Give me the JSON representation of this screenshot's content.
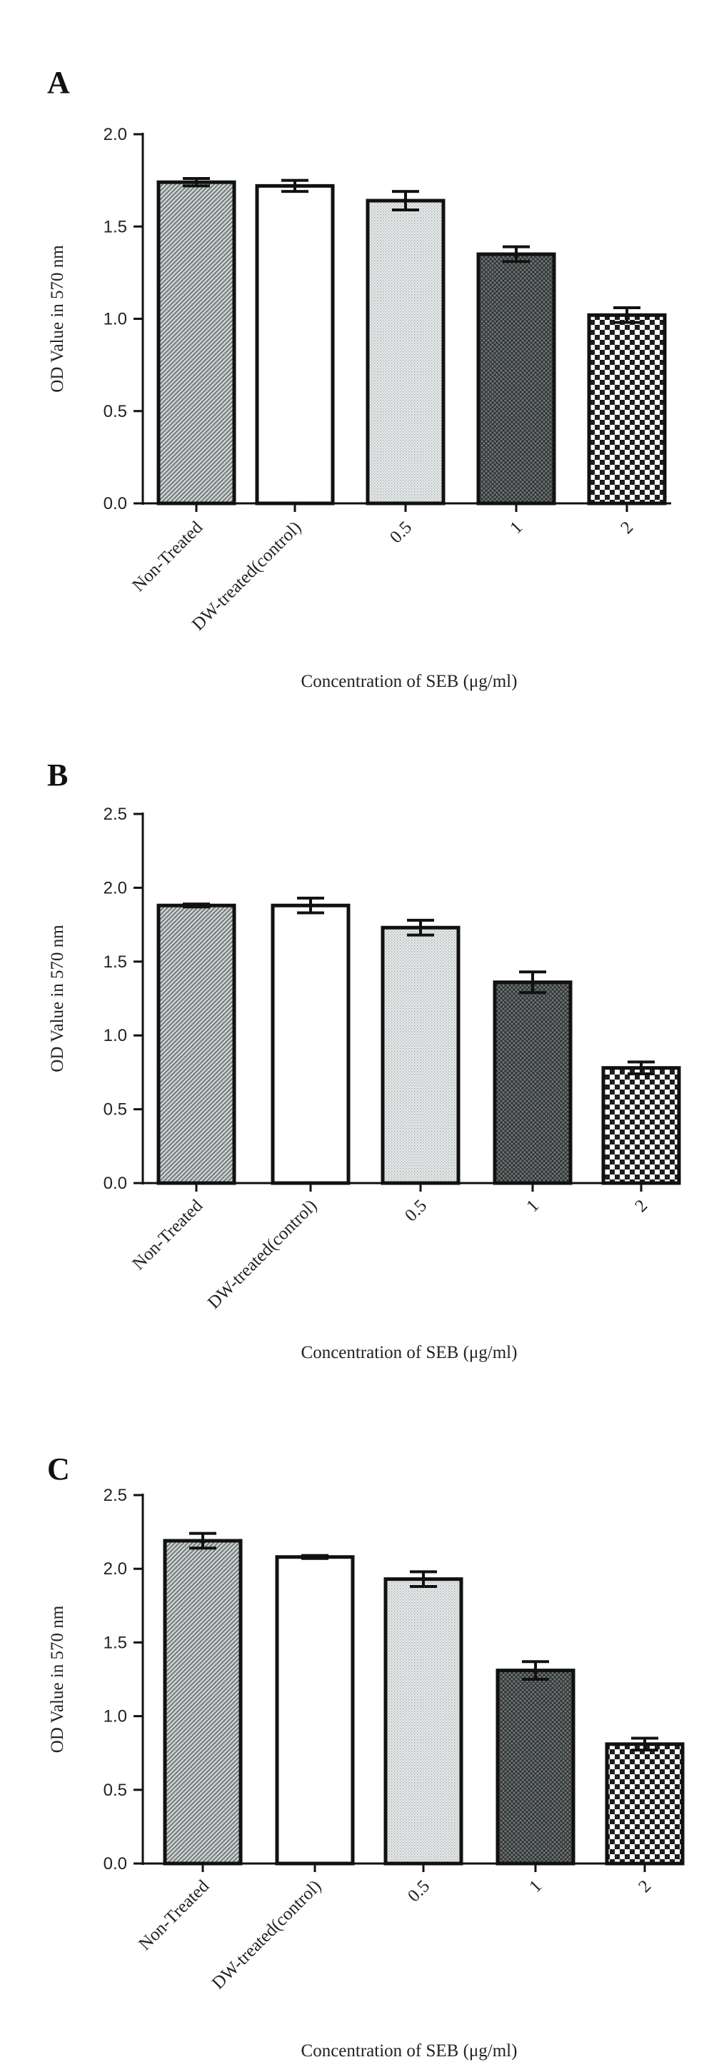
{
  "chart_data": [
    {
      "type": "bar",
      "panel_label": "A",
      "categories": [
        "Non-Treated",
        "DW-treated(control)",
        "0.5",
        "1",
        "2"
      ],
      "values": [
        1.74,
        1.72,
        1.64,
        1.35,
        1.02
      ],
      "errors": [
        0.02,
        0.03,
        0.05,
        0.04,
        0.04
      ],
      "xlabel": "Concentration of SEB (μg/ml)",
      "ylabel": "OD Value in 570 nm",
      "ylim": [
        0,
        2.0
      ],
      "yticks": [
        "0.0",
        "0.5",
        "1.0",
        "1.5",
        "2.0"
      ],
      "grid": false,
      "legend": "none"
    },
    {
      "type": "bar",
      "panel_label": "B",
      "categories": [
        "Non-Treated",
        "DW-treated(control)",
        "0.5",
        "1",
        "2"
      ],
      "values": [
        1.88,
        1.88,
        1.73,
        1.36,
        0.78
      ],
      "errors": [
        0.01,
        0.05,
        0.05,
        0.07,
        0.04
      ],
      "xlabel": "Concentration of SEB (μg/ml)",
      "ylabel": "OD Value in 570 nm",
      "ylim": [
        0,
        2.5
      ],
      "yticks": [
        "0.0",
        "0.5",
        "1.0",
        "1.5",
        "2.0",
        "2.5"
      ],
      "grid": false,
      "legend": "none"
    },
    {
      "type": "bar",
      "panel_label": "C",
      "categories": [
        "Non-Treated",
        "DW-treated(control)",
        "0.5",
        "1",
        "2"
      ],
      "values": [
        2.19,
        2.08,
        1.93,
        1.31,
        0.81
      ],
      "errors": [
        0.05,
        0.01,
        0.05,
        0.06,
        0.04
      ],
      "xlabel": "Concentration of SEB (μg/ml)",
      "ylabel": "OD Value in 570 nm",
      "ylim": [
        0,
        2.5
      ],
      "yticks": [
        "0.0",
        "0.5",
        "1.0",
        "1.5",
        "2.0",
        "2.5"
      ],
      "grid": false,
      "legend": "none"
    }
  ]
}
